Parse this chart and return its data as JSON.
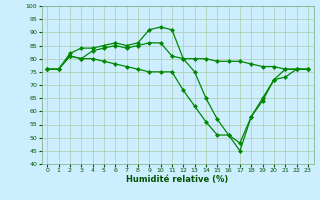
{
  "xlabel": "Humidité relative (%)",
  "background_color": "#cceeff",
  "grid_color": "#aaccaa",
  "line_color": "#008800",
  "marker": "D",
  "markersize": 2.0,
  "linewidth": 0.9,
  "ylim": [
    40,
    100
  ],
  "xlim": [
    -0.5,
    23.5
  ],
  "yticks": [
    40,
    45,
    50,
    55,
    60,
    65,
    70,
    75,
    80,
    85,
    90,
    95,
    100
  ],
  "xticks": [
    0,
    1,
    2,
    3,
    4,
    5,
    6,
    7,
    8,
    9,
    10,
    11,
    12,
    13,
    14,
    15,
    16,
    17,
    18,
    19,
    20,
    21,
    22,
    23
  ],
  "series1_x": [
    0,
    1,
    2,
    3,
    4,
    5,
    6,
    7,
    8,
    9,
    10,
    11,
    12,
    13,
    14,
    15,
    16,
    17,
    18,
    19,
    20,
    21,
    22,
    23
  ],
  "series1_y": [
    76,
    76,
    82,
    84,
    84,
    85,
    86,
    85,
    86,
    91,
    92,
    91,
    80,
    75,
    65,
    57,
    51,
    48,
    58,
    65,
    72,
    76,
    76,
    76
  ],
  "series2_x": [
    0,
    1,
    2,
    3,
    4,
    5,
    6,
    7,
    8,
    9,
    10,
    11,
    12,
    13,
    14,
    15,
    16,
    17,
    18,
    19,
    20,
    21,
    22,
    23
  ],
  "series2_y": [
    76,
    76,
    81,
    80,
    83,
    84,
    85,
    84,
    85,
    86,
    86,
    81,
    80,
    80,
    80,
    79,
    79,
    79,
    78,
    77,
    77,
    76,
    76,
    76
  ],
  "series3_x": [
    0,
    1,
    2,
    3,
    4,
    5,
    6,
    7,
    8,
    9,
    10,
    11,
    12,
    13,
    14,
    15,
    16,
    17,
    18,
    19,
    20,
    21,
    22,
    23
  ],
  "series3_y": [
    76,
    76,
    81,
    80,
    80,
    79,
    78,
    77,
    76,
    75,
    75,
    75,
    68,
    62,
    56,
    51,
    51,
    45,
    58,
    64,
    72,
    73,
    76,
    76
  ]
}
